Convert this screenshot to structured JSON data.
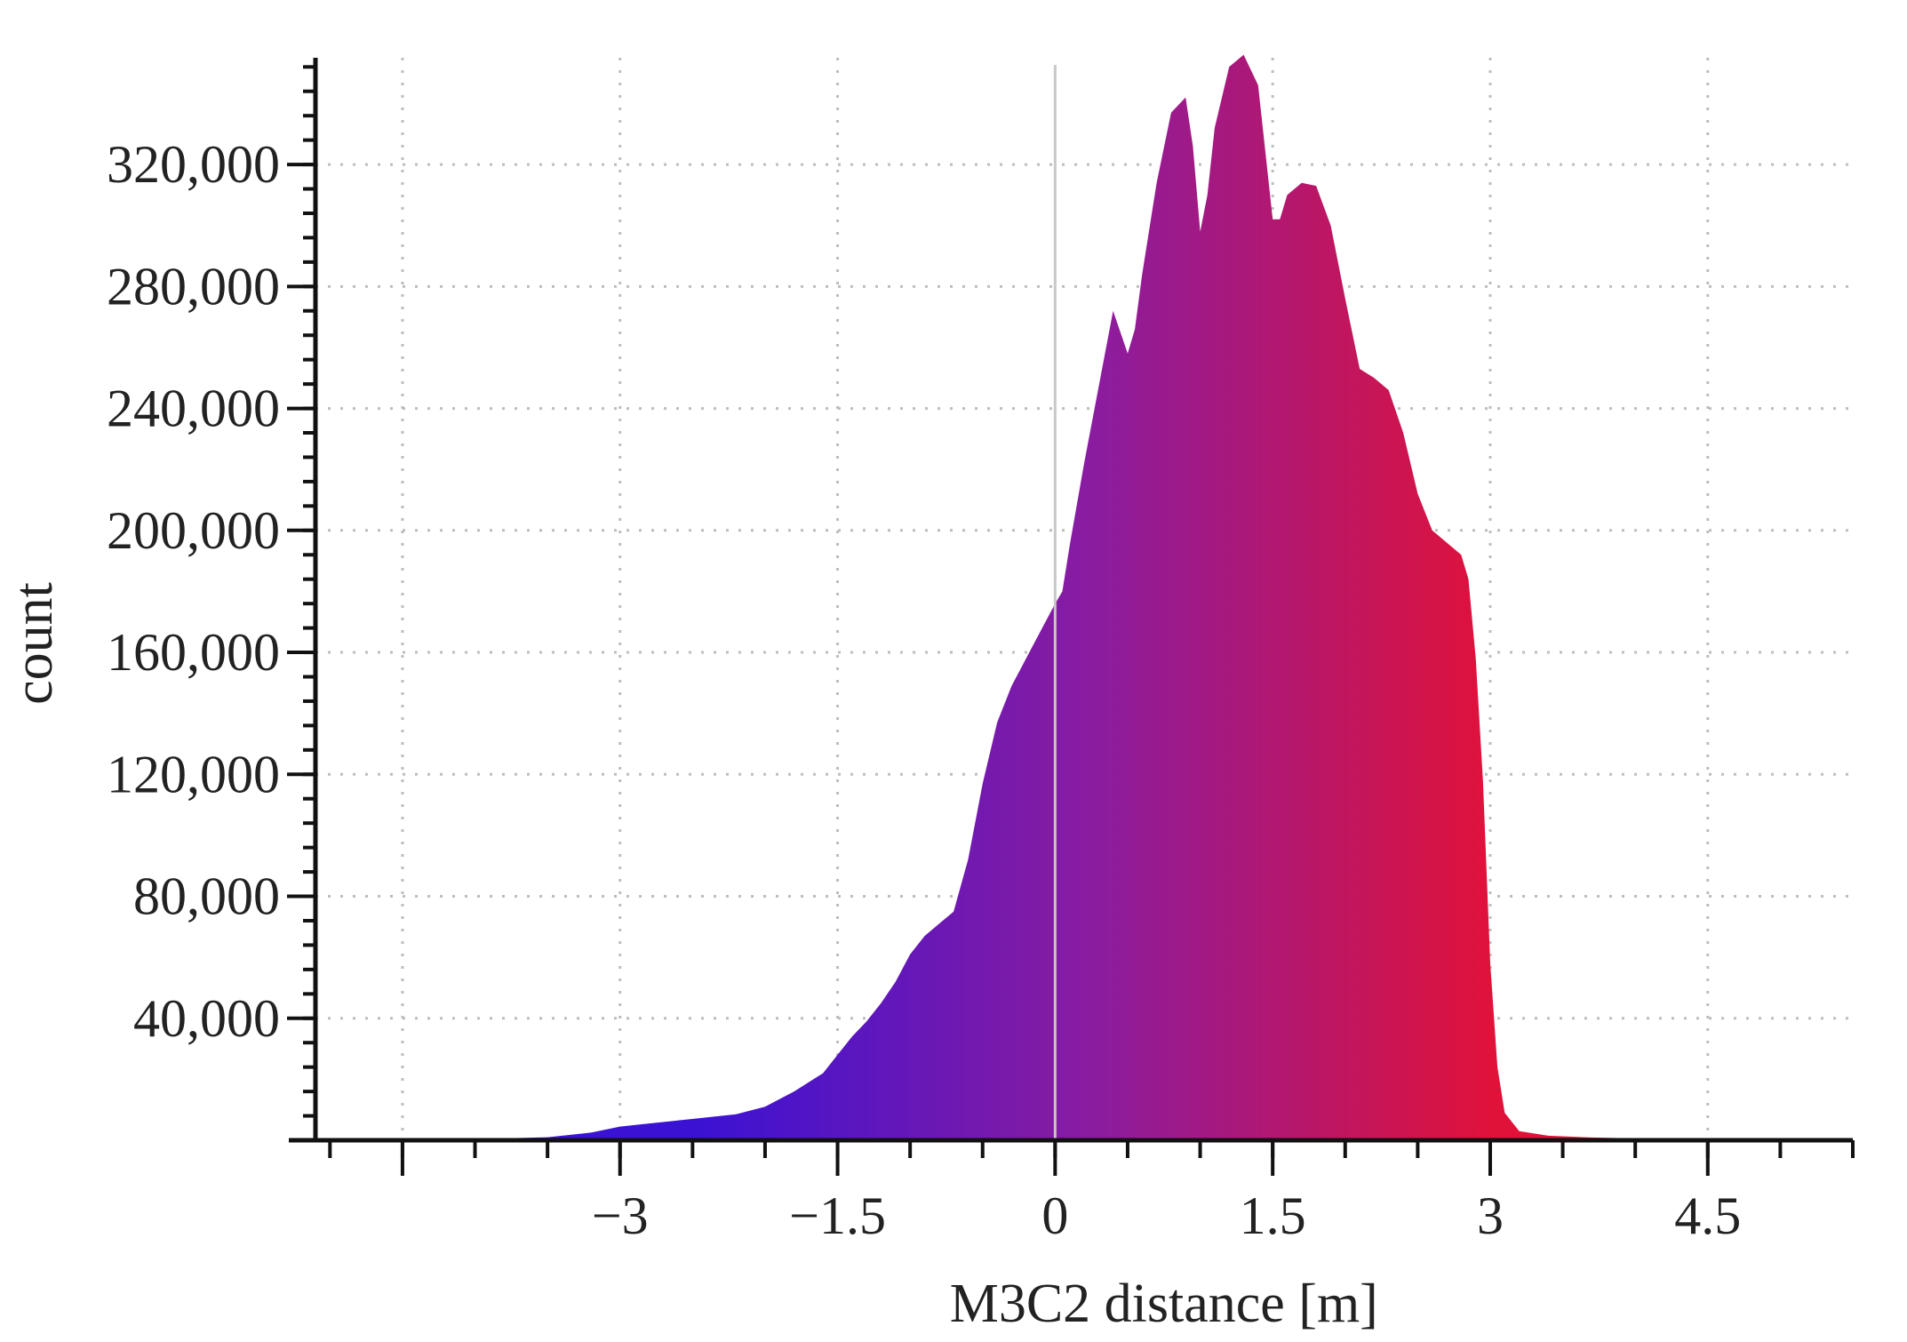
{
  "chart_data": {
    "type": "area",
    "title": "",
    "xlabel": "M3C2 distance [m]",
    "ylabel": "count",
    "xlim": [
      -5.1,
      5.5
    ],
    "ylim": [
      0,
      355000
    ],
    "x_ticks": [
      -3,
      -1.5,
      0,
      1.5,
      3,
      4.5
    ],
    "x_tick_labels": [
      "−3",
      "−1.5",
      "0",
      "1.5",
      "3",
      "4.5"
    ],
    "x_minor_step": 0.5,
    "y_ticks": [
      40000,
      80000,
      120000,
      160000,
      200000,
      240000,
      280000,
      320000
    ],
    "y_tick_labels": [
      "40,000",
      "80,000",
      "120,000",
      "160,000",
      "200,000",
      "240,000",
      "280,000",
      "320,000"
    ],
    "y_minor_step": 8000,
    "grid": "dotted",
    "zero_line": true,
    "colormap": {
      "low": "#3a12d4",
      "mid": "#8a1ca0",
      "high": "#e0123a"
    },
    "series": [
      {
        "x": [
          -3.9,
          -3.5,
          -3.2,
          -3.0,
          -2.8,
          -2.5,
          -2.2,
          -2.0,
          -1.8,
          -1.6,
          -1.5,
          -1.4,
          -1.3,
          -1.2,
          -1.1,
          -1.0,
          -0.9,
          -0.8,
          -0.7,
          -0.6,
          -0.5,
          -0.4,
          -0.3,
          -0.2,
          -0.1,
          0.0,
          0.05,
          0.1,
          0.2,
          0.3,
          0.4,
          0.5,
          0.55,
          0.6,
          0.7,
          0.8,
          0.9,
          0.95,
          1.0,
          1.05,
          1.1,
          1.2,
          1.3,
          1.4,
          1.5,
          1.55,
          1.6,
          1.7,
          1.8,
          1.9,
          2.0,
          2.1,
          2.2,
          2.3,
          2.4,
          2.5,
          2.6,
          2.7,
          2.8,
          2.85,
          2.9,
          2.95,
          3.0,
          3.05,
          3.1,
          3.2,
          3.4,
          3.7,
          4.1,
          4.6
        ],
        "values": [
          500,
          1000,
          2500,
          4500,
          5500,
          7000,
          8500,
          11000,
          16000,
          22000,
          28000,
          34000,
          39000,
          45000,
          52000,
          61000,
          67000,
          71000,
          75000,
          92000,
          117000,
          137000,
          149000,
          158000,
          167000,
          176000,
          180000,
          195000,
          222000,
          247000,
          272000,
          258000,
          266000,
          284000,
          314000,
          337000,
          342000,
          326000,
          298000,
          310000,
          332000,
          352000,
          356000,
          346000,
          302000,
          302000,
          310000,
          314000,
          313000,
          300000,
          276000,
          253000,
          250000,
          246000,
          232000,
          212000,
          200000,
          196000,
          192000,
          184000,
          158000,
          118000,
          58000,
          24000,
          9000,
          3000,
          1500,
          900,
          500,
          200
        ]
      }
    ]
  }
}
